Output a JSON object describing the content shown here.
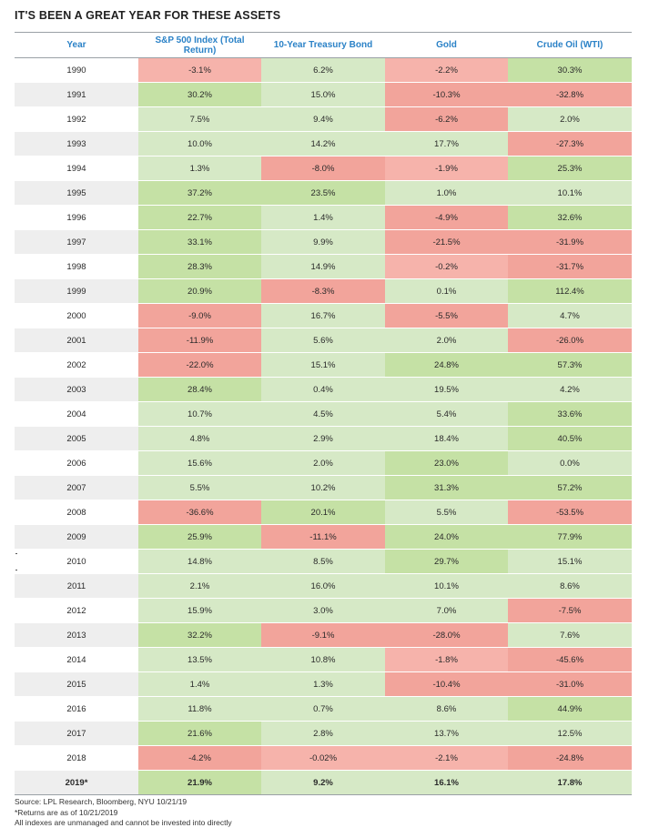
{
  "title": "IT'S BEEN A GREAT YEAR FOR THESE ASSETS",
  "chart_data": {
    "type": "table",
    "columns": [
      "Year",
      "S&P 500 Index (Total Return)",
      "10-Year Treasury Bond",
      "Gold",
      "Crude Oil (WTI)"
    ],
    "rows": [
      {
        "year": "1990",
        "values": [
          "-3.1%",
          "6.2%",
          "-2.2%",
          "30.3%"
        ]
      },
      {
        "year": "1991",
        "values": [
          "30.2%",
          "15.0%",
          "-10.3%",
          "-32.8%"
        ]
      },
      {
        "year": "1992",
        "values": [
          "7.5%",
          "9.4%",
          "-6.2%",
          "2.0%"
        ]
      },
      {
        "year": "1993",
        "values": [
          "10.0%",
          "14.2%",
          "17.7%",
          "-27.3%"
        ]
      },
      {
        "year": "1994",
        "values": [
          "1.3%",
          "-8.0%",
          "-1.9%",
          "25.3%"
        ]
      },
      {
        "year": "1995",
        "values": [
          "37.2%",
          "23.5%",
          "1.0%",
          "10.1%"
        ]
      },
      {
        "year": "1996",
        "values": [
          "22.7%",
          "1.4%",
          "-4.9%",
          "32.6%"
        ]
      },
      {
        "year": "1997",
        "values": [
          "33.1%",
          "9.9%",
          "-21.5%",
          "-31.9%"
        ]
      },
      {
        "year": "1998",
        "values": [
          "28.3%",
          "14.9%",
          "-0.2%",
          "-31.7%"
        ]
      },
      {
        "year": "1999",
        "values": [
          "20.9%",
          "-8.3%",
          "0.1%",
          "112.4%"
        ]
      },
      {
        "year": "2000",
        "values": [
          "-9.0%",
          "16.7%",
          "-5.5%",
          "4.7%"
        ]
      },
      {
        "year": "2001",
        "values": [
          "-11.9%",
          "5.6%",
          "2.0%",
          "-26.0%"
        ]
      },
      {
        "year": "2002",
        "values": [
          "-22.0%",
          "15.1%",
          "24.8%",
          "57.3%"
        ]
      },
      {
        "year": "2003",
        "values": [
          "28.4%",
          "0.4%",
          "19.5%",
          "4.2%"
        ]
      },
      {
        "year": "2004",
        "values": [
          "10.7%",
          "4.5%",
          "5.4%",
          "33.6%"
        ]
      },
      {
        "year": "2005",
        "values": [
          "4.8%",
          "2.9%",
          "18.4%",
          "40.5%"
        ]
      },
      {
        "year": "2006",
        "values": [
          "15.6%",
          "2.0%",
          "23.0%",
          "0.0%"
        ]
      },
      {
        "year": "2007",
        "values": [
          "5.5%",
          "10.2%",
          "31.3%",
          "57.2%"
        ]
      },
      {
        "year": "2008",
        "values": [
          "-36.6%",
          "20.1%",
          "5.5%",
          "-53.5%"
        ]
      },
      {
        "year": "2009",
        "values": [
          "25.9%",
          "-11.1%",
          "24.0%",
          "77.9%"
        ]
      },
      {
        "year": "2010",
        "values": [
          "14.8%",
          "8.5%",
          "29.7%",
          "15.1%"
        ]
      },
      {
        "year": "2011",
        "values": [
          "2.1%",
          "16.0%",
          "10.1%",
          "8.6%"
        ]
      },
      {
        "year": "2012",
        "values": [
          "15.9%",
          "3.0%",
          "7.0%",
          "-7.5%"
        ]
      },
      {
        "year": "2013",
        "values": [
          "32.2%",
          "-9.1%",
          "-28.0%",
          "7.6%"
        ]
      },
      {
        "year": "2014",
        "values": [
          "13.5%",
          "10.8%",
          "-1.8%",
          "-45.6%"
        ]
      },
      {
        "year": "2015",
        "values": [
          "1.4%",
          "1.3%",
          "-10.4%",
          "-31.0%"
        ]
      },
      {
        "year": "2016",
        "values": [
          "11.8%",
          "0.7%",
          "8.6%",
          "44.9%"
        ]
      },
      {
        "year": "2017",
        "values": [
          "21.6%",
          "2.8%",
          "13.7%",
          "12.5%"
        ]
      },
      {
        "year": "2018",
        "values": [
          "-4.2%",
          "-0.02%",
          "-2.1%",
          "-24.8%"
        ]
      },
      {
        "year": "2019*",
        "values": [
          "21.9%",
          "9.2%",
          "16.1%",
          "17.8%"
        ]
      }
    ],
    "colors": {
      "positive": "#d6e9c6",
      "negative": "#f6b3ab",
      "header": "#2b82c7"
    }
  },
  "footnotes": [
    "Source: LPL Research, Bloomberg, NYU 10/21/19",
    "*Returns are as of 10/21/2019",
    "All indexes are unmanaged and cannot be invested into directly"
  ]
}
